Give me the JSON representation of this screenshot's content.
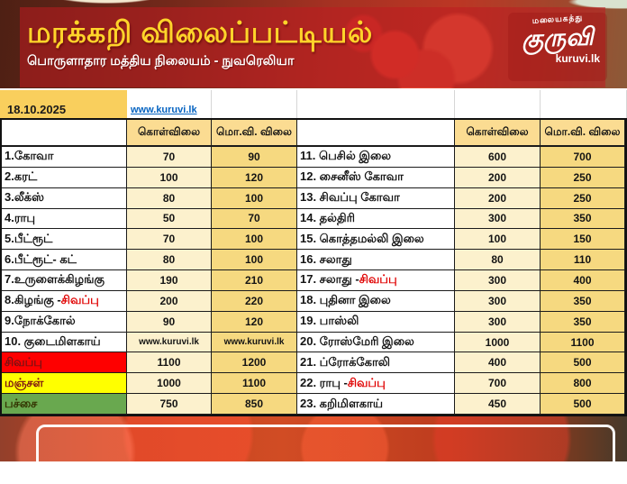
{
  "header": {
    "title": "மரக்கறி விலைப்பட்டியல்",
    "subtitle": "பொருளாதார மத்திய நிலையம் - நுவரெலியா",
    "logo": {
      "tagline": "மலையகத்து",
      "name": "குருவி",
      "site": "kuruvi.lk"
    }
  },
  "meta": {
    "date": "18.10.2025",
    "website": "www.kuruvi.lk"
  },
  "table": {
    "headers": {
      "buy": "கொள்விலை",
      "retail": "மொ.வி. விலை"
    },
    "left_rows": [
      {
        "label": "1.கோவா",
        "buy": "70",
        "retail": "90"
      },
      {
        "label": "2.கரட்",
        "buy": "100",
        "retail": "120"
      },
      {
        "label": "3.லீக்ஸ்",
        "buy": "80",
        "retail": "100"
      },
      {
        "label": "4.ராபு",
        "buy": "50",
        "retail": "70"
      },
      {
        "label": "5.பீட்ரூட்",
        "buy": "70",
        "retail": "100"
      },
      {
        "label": "6.பீட்ரூட்- கட்",
        "buy": "80",
        "retail": "100"
      },
      {
        "label": "7.உருளைக்கிழங்கு",
        "buy": "190",
        "retail": "210"
      },
      {
        "label": "8.கிழங்கு - ",
        "label_red": "சிவப்பு",
        "buy": "200",
        "retail": "220"
      },
      {
        "label": "9.நோக்கோல்",
        "buy": "90",
        "retail": "120"
      },
      {
        "label": "10. குடைமிளகாய்",
        "buy": "www.kuruvi.lk",
        "retail": "www.kuruvi.lk",
        "small": true
      },
      {
        "label": "சிவப்பு",
        "buy": "1100",
        "retail": "1200",
        "bg": "#fe0000",
        "fg": "#7b1113"
      },
      {
        "label": "மஞ்சள்",
        "buy": "1000",
        "retail": "1100",
        "bg": "#ffff00",
        "fg": "#7b1113"
      },
      {
        "label": "பச்சை",
        "buy": "750",
        "retail": "850",
        "bg": "#69a84f",
        "fg": "#333300"
      }
    ],
    "right_rows": [
      {
        "label": "11. பெசில் இலை",
        "buy": "600",
        "retail": "700"
      },
      {
        "label": "12. சைனீஸ் கோவா",
        "buy": "200",
        "retail": "250"
      },
      {
        "label": "13. சிவப்பு கோவா",
        "buy": "200",
        "retail": "250"
      },
      {
        "label": "14. தல்திரி",
        "buy": "300",
        "retail": "350"
      },
      {
        "label": "15. கொத்தமல்லி இலை",
        "buy": "100",
        "retail": "150"
      },
      {
        "label": "16. சலாது",
        "buy": "80",
        "retail": "110"
      },
      {
        "label": "17. சலாது - ",
        "label_red": "சிவப்பு",
        "buy": "300",
        "retail": "400"
      },
      {
        "label": "18. புதினா இலை",
        "buy": "300",
        "retail": "350"
      },
      {
        "label": "19. பாஸ்லி",
        "buy": "300",
        "retail": "350"
      },
      {
        "label": "20. ரோஸ்மேரி இலை",
        "buy": "1000",
        "retail": "1100"
      },
      {
        "label": "21. ப்ரோக்கோலி",
        "buy": "400",
        "retail": "500"
      },
      {
        "label": "22. ராபு - ",
        "label_red": "சிவப்பு",
        "buy": "700",
        "retail": "800"
      },
      {
        "label": "23. கறிமிளகாய்",
        "buy": "450",
        "retail": "500"
      }
    ]
  },
  "colors": {
    "banner_red_overlay": "rgba(190,28,32,0.55)",
    "title_yellow": "#ffd42a",
    "date_yellow": "#f9cf5d",
    "header_cell": "#fbdc92",
    "buy_cell": "#fcf1cd",
    "retail_cell": "#f6d980",
    "red_text": "#e00000",
    "link_blue": "#0563c1"
  }
}
